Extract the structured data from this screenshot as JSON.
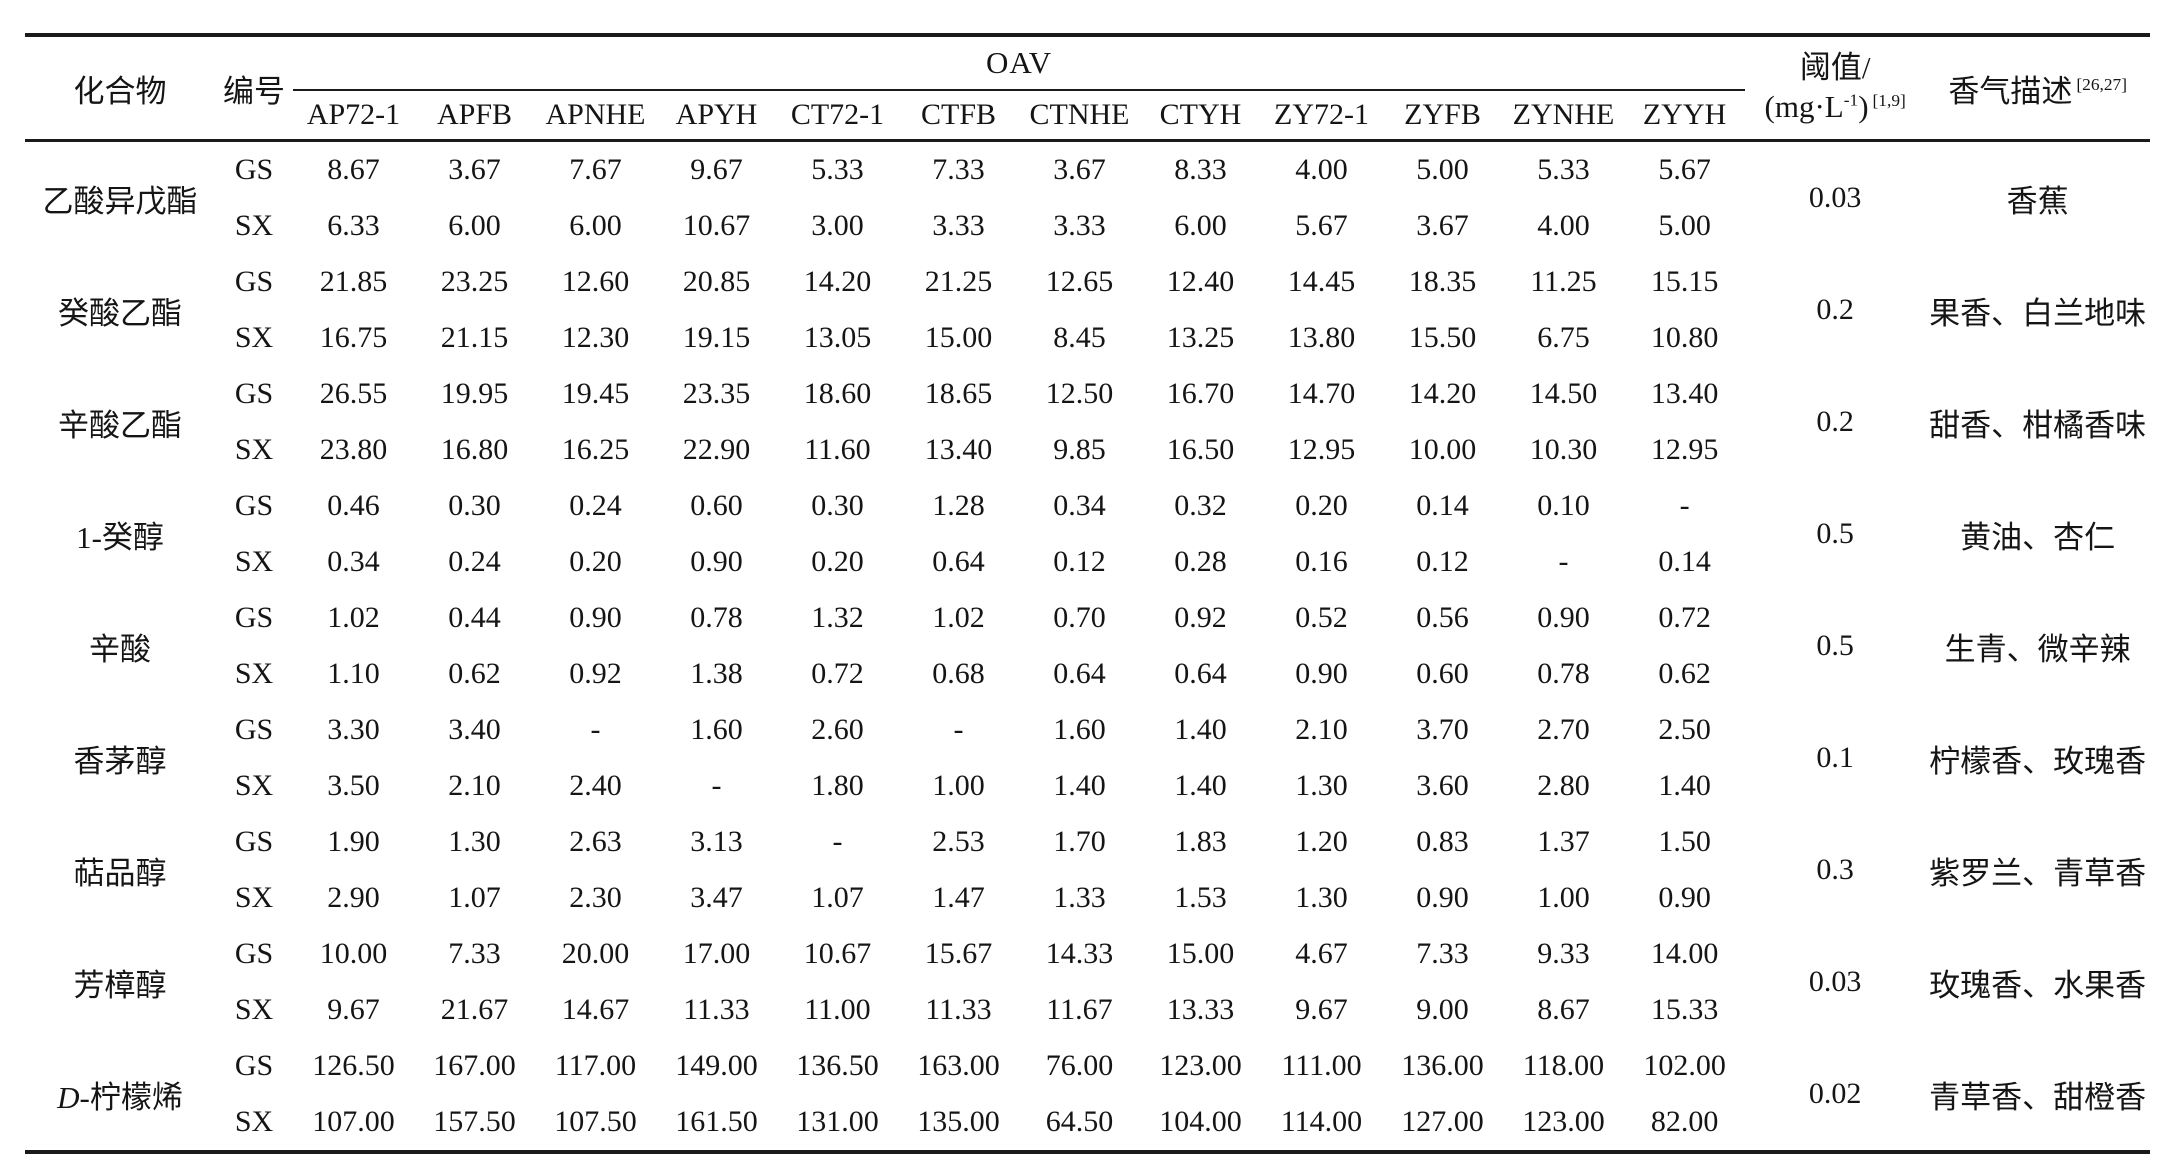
{
  "table": {
    "header": {
      "compound": "化合物",
      "code": "编号",
      "oav_group": "OAV",
      "sample_columns": [
        "AP72-1",
        "APFB",
        "APNHE",
        "APYH",
        "CT72-1",
        "CTFB",
        "CTNHE",
        "CTYH",
        "ZY72-1",
        "ZYFB",
        "ZYNHE",
        "ZYYH"
      ],
      "threshold": {
        "line1": "阈值/",
        "line2_pre": "(mg·L",
        "line2_sup": "-1",
        "line2_close": ")",
        "ref": "[1,9]"
      },
      "aroma": {
        "label": "香气描述",
        "ref": "[26,27]"
      }
    },
    "rows": [
      {
        "compound": "乙酸异戊酯",
        "compound_italic_prefix": "",
        "threshold": "0.03",
        "aroma": "香蕉",
        "series": [
          {
            "code": "GS",
            "values": [
              "8.67",
              "3.67",
              "7.67",
              "9.67",
              "5.33",
              "7.33",
              "3.67",
              "8.33",
              "4.00",
              "5.00",
              "5.33",
              "5.67"
            ]
          },
          {
            "code": "SX",
            "values": [
              "6.33",
              "6.00",
              "6.00",
              "10.67",
              "3.00",
              "3.33",
              "3.33",
              "6.00",
              "5.67",
              "3.67",
              "4.00",
              "5.00"
            ]
          }
        ]
      },
      {
        "compound": "癸酸乙酯",
        "compound_italic_prefix": "",
        "threshold": "0.2",
        "aroma": "果香、白兰地味",
        "series": [
          {
            "code": "GS",
            "values": [
              "21.85",
              "23.25",
              "12.60",
              "20.85",
              "14.20",
              "21.25",
              "12.65",
              "12.40",
              "14.45",
              "18.35",
              "11.25",
              "15.15"
            ]
          },
          {
            "code": "SX",
            "values": [
              "16.75",
              "21.15",
              "12.30",
              "19.15",
              "13.05",
              "15.00",
              "8.45",
              "13.25",
              "13.80",
              "15.50",
              "6.75",
              "10.80"
            ]
          }
        ]
      },
      {
        "compound": "辛酸乙酯",
        "compound_italic_prefix": "",
        "threshold": "0.2",
        "aroma": "甜香、柑橘香味",
        "series": [
          {
            "code": "GS",
            "values": [
              "26.55",
              "19.95",
              "19.45",
              "23.35",
              "18.60",
              "18.65",
              "12.50",
              "16.70",
              "14.70",
              "14.20",
              "14.50",
              "13.40"
            ]
          },
          {
            "code": "SX",
            "values": [
              "23.80",
              "16.80",
              "16.25",
              "22.90",
              "11.60",
              "13.40",
              "9.85",
              "16.50",
              "12.95",
              "10.00",
              "10.30",
              "12.95"
            ]
          }
        ]
      },
      {
        "compound": "1-癸醇",
        "compound_italic_prefix": "",
        "threshold": "0.5",
        "aroma": "黄油、杏仁",
        "series": [
          {
            "code": "GS",
            "values": [
              "0.46",
              "0.30",
              "0.24",
              "0.60",
              "0.30",
              "1.28",
              "0.34",
              "0.32",
              "0.20",
              "0.14",
              "0.10",
              "-"
            ]
          },
          {
            "code": "SX",
            "values": [
              "0.34",
              "0.24",
              "0.20",
              "0.90",
              "0.20",
              "0.64",
              "0.12",
              "0.28",
              "0.16",
              "0.12",
              "-",
              "0.14"
            ]
          }
        ]
      },
      {
        "compound": "辛酸",
        "compound_italic_prefix": "",
        "threshold": "0.5",
        "aroma": "生青、微辛辣",
        "series": [
          {
            "code": "GS",
            "values": [
              "1.02",
              "0.44",
              "0.90",
              "0.78",
              "1.32",
              "1.02",
              "0.70",
              "0.92",
              "0.52",
              "0.56",
              "0.90",
              "0.72"
            ]
          },
          {
            "code": "SX",
            "values": [
              "1.10",
              "0.62",
              "0.92",
              "1.38",
              "0.72",
              "0.68",
              "0.64",
              "0.64",
              "0.90",
              "0.60",
              "0.78",
              "0.62"
            ]
          }
        ]
      },
      {
        "compound": "香茅醇",
        "compound_italic_prefix": "",
        "threshold": "0.1",
        "aroma": "柠檬香、玫瑰香",
        "series": [
          {
            "code": "GS",
            "values": [
              "3.30",
              "3.40",
              "-",
              "1.60",
              "2.60",
              "-",
              "1.60",
              "1.40",
              "2.10",
              "3.70",
              "2.70",
              "2.50"
            ]
          },
          {
            "code": "SX",
            "values": [
              "3.50",
              "2.10",
              "2.40",
              "-",
              "1.80",
              "1.00",
              "1.40",
              "1.40",
              "1.30",
              "3.60",
              "2.80",
              "1.40"
            ]
          }
        ]
      },
      {
        "compound": "萜品醇",
        "compound_italic_prefix": "",
        "threshold": "0.3",
        "aroma": "紫罗兰、青草香",
        "series": [
          {
            "code": "GS",
            "values": [
              "1.90",
              "1.30",
              "2.63",
              "3.13",
              "-",
              "2.53",
              "1.70",
              "1.83",
              "1.20",
              "0.83",
              "1.37",
              "1.50"
            ]
          },
          {
            "code": "SX",
            "values": [
              "2.90",
              "1.07",
              "2.30",
              "3.47",
              "1.07",
              "1.47",
              "1.33",
              "1.53",
              "1.30",
              "0.90",
              "1.00",
              "0.90"
            ]
          }
        ]
      },
      {
        "compound": "芳樟醇",
        "compound_italic_prefix": "",
        "threshold": "0.03",
        "aroma": "玫瑰香、水果香",
        "series": [
          {
            "code": "GS",
            "values": [
              "10.00",
              "7.33",
              "20.00",
              "17.00",
              "10.67",
              "15.67",
              "14.33",
              "15.00",
              "4.67",
              "7.33",
              "9.33",
              "14.00"
            ]
          },
          {
            "code": "SX",
            "values": [
              "9.67",
              "21.67",
              "14.67",
              "11.33",
              "11.00",
              "11.33",
              "11.67",
              "13.33",
              "9.67",
              "9.00",
              "8.67",
              "15.33"
            ]
          }
        ]
      },
      {
        "compound": "-柠檬烯",
        "compound_italic_prefix": "D",
        "threshold": "0.02",
        "aroma": "青草香、甜橙香",
        "series": [
          {
            "code": "GS",
            "values": [
              "126.50",
              "167.00",
              "117.00",
              "149.00",
              "136.50",
              "163.00",
              "76.00",
              "123.00",
              "111.00",
              "136.00",
              "118.00",
              "102.00"
            ]
          },
          {
            "code": "SX",
            "values": [
              "107.00",
              "157.50",
              "107.50",
              "161.50",
              "131.00",
              "135.00",
              "64.50",
              "104.00",
              "114.00",
              "127.00",
              "123.00",
              "82.00"
            ]
          }
        ]
      }
    ]
  }
}
